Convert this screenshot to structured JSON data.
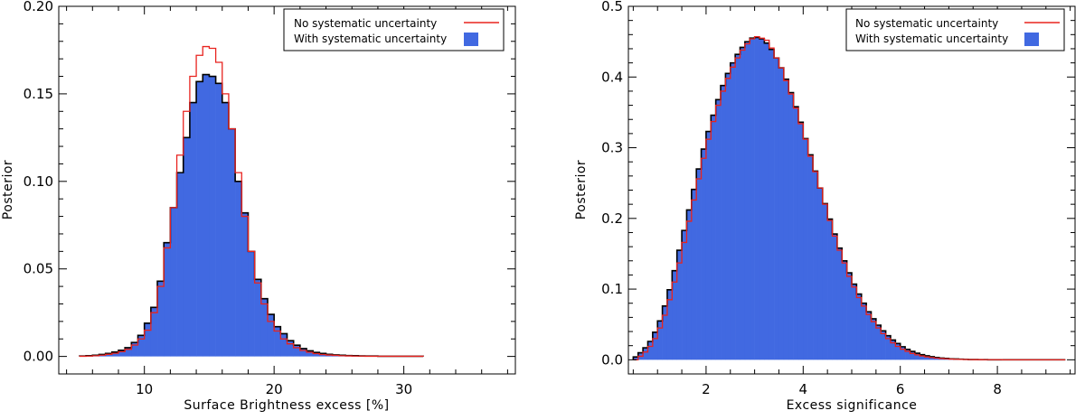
{
  "chart_data": [
    {
      "type": "histogram",
      "xlabel": "Surface Brightness excess [%]",
      "ylabel": "Posterior",
      "xlim": [
        3.4,
        38.6
      ],
      "ylim": [
        -0.01,
        0.2
      ],
      "xticks": [
        10,
        20,
        30
      ],
      "yticks": [
        0.0,
        0.05,
        0.1,
        0.15,
        0.2
      ],
      "ytick_labels": [
        "0.00",
        "0.05",
        "0.10",
        "0.15",
        "0.20"
      ],
      "bin_width": 0.5,
      "bin_start": 5.0,
      "legend_position": "top-right",
      "series": [
        {
          "name": "No systematic uncertainty",
          "style": "red outline histogram",
          "color": "#e8231f",
          "values": [
            0.0001,
            0.0002,
            0.0004,
            0.0007,
            0.0012,
            0.0018,
            0.0027,
            0.0041,
            0.0065,
            0.01,
            0.015,
            0.025,
            0.04,
            0.062,
            0.085,
            0.115,
            0.14,
            0.16,
            0.172,
            0.177,
            0.176,
            0.168,
            0.15,
            0.13,
            0.105,
            0.08,
            0.06,
            0.042,
            0.03,
            0.02,
            0.0145,
            0.01,
            0.0072,
            0.005,
            0.0034,
            0.0024,
            0.0016,
            0.0011,
            0.0008,
            0.0006,
            0.0004,
            0.0003,
            0.0002,
            0.0002,
            0.0001,
            0.0001,
            0.0001,
            0.0001,
            0.0001,
            0.0001,
            0.0001,
            0.0001,
            0.0001
          ]
        },
        {
          "name": "With systematic uncertainty",
          "style": "filled histogram",
          "color": "#4169e1",
          "values": [
            0.0002,
            0.0004,
            0.0007,
            0.0011,
            0.0017,
            0.0025,
            0.0035,
            0.005,
            0.008,
            0.012,
            0.019,
            0.028,
            0.043,
            0.065,
            0.085,
            0.105,
            0.125,
            0.145,
            0.157,
            0.161,
            0.16,
            0.156,
            0.145,
            0.13,
            0.1,
            0.082,
            0.06,
            0.044,
            0.033,
            0.024,
            0.017,
            0.013,
            0.009,
            0.0064,
            0.0045,
            0.0032,
            0.0023,
            0.0017,
            0.0012,
            0.0009,
            0.0007,
            0.0005,
            0.0004,
            0.0003,
            0.0002,
            0.0002,
            0.0001,
            0.0001,
            0.0001,
            0.0001,
            0.0001,
            0.0001,
            0.0001
          ]
        }
      ]
    },
    {
      "type": "histogram",
      "xlabel": "Excess significance",
      "ylabel": "Posterior",
      "xlim": [
        0.4,
        9.6
      ],
      "ylim": [
        -0.02,
        0.5
      ],
      "xticks": [
        2,
        4,
        6,
        8
      ],
      "yticks": [
        0.0,
        0.1,
        0.2,
        0.3,
        0.4,
        0.5
      ],
      "ytick_labels": [
        "0.0",
        "0.1",
        "0.2",
        "0.3",
        "0.4",
        "0.5"
      ],
      "bin_width": 0.1,
      "bin_start": 0.5,
      "legend_position": "top-right",
      "series": [
        {
          "name": "No systematic uncertainty",
          "style": "red outline histogram",
          "color": "#e8231f",
          "values": [
            0.0,
            0.005,
            0.011,
            0.019,
            0.03,
            0.045,
            0.063,
            0.085,
            0.11,
            0.137,
            0.166,
            0.196,
            0.226,
            0.256,
            0.285,
            0.312,
            0.337,
            0.36,
            0.38,
            0.398,
            0.414,
            0.427,
            0.438,
            0.447,
            0.454,
            0.457,
            0.455,
            0.452,
            0.441,
            0.427,
            0.413,
            0.395,
            0.376,
            0.356,
            0.334,
            0.312,
            0.288,
            0.266,
            0.243,
            0.22,
            0.197,
            0.175,
            0.155,
            0.137,
            0.118,
            0.103,
            0.088,
            0.076,
            0.064,
            0.054,
            0.045,
            0.037,
            0.03,
            0.024,
            0.019,
            0.015,
            0.012,
            0.009,
            0.007,
            0.0055,
            0.0042,
            0.0032,
            0.0024,
            0.0018,
            0.0014,
            0.001,
            0.0008,
            0.0006,
            0.0004,
            0.0003,
            0.0002,
            0.0002,
            0.0001,
            0.0001,
            0.0001,
            0.0001,
            0.0,
            0.0,
            0.0,
            0.0,
            0.0,
            0.0,
            0.0,
            0.0,
            0.0,
            0.0,
            0.0,
            0.0,
            0.0
          ]
        },
        {
          "name": "With systematic uncertainty",
          "style": "filled histogram",
          "color": "#4169e1",
          "values": [
            0.004,
            0.01,
            0.017,
            0.026,
            0.039,
            0.055,
            0.076,
            0.099,
            0.126,
            0.155,
            0.183,
            0.212,
            0.241,
            0.27,
            0.298,
            0.323,
            0.346,
            0.368,
            0.388,
            0.405,
            0.42,
            0.432,
            0.442,
            0.45,
            0.455,
            0.456,
            0.454,
            0.448,
            0.439,
            0.427,
            0.413,
            0.397,
            0.378,
            0.358,
            0.336,
            0.313,
            0.29,
            0.267,
            0.243,
            0.221,
            0.199,
            0.178,
            0.158,
            0.14,
            0.123,
            0.107,
            0.093,
            0.08,
            0.068,
            0.058,
            0.049,
            0.041,
            0.034,
            0.028,
            0.023,
            0.0185,
            0.0148,
            0.0118,
            0.0093,
            0.0072,
            0.0056,
            0.0043,
            0.0033,
            0.0025,
            0.0019,
            0.0014,
            0.0011,
            0.0008,
            0.0006,
            0.0004,
            0.0003,
            0.0002,
            0.0002,
            0.0001,
            0.0001,
            0.0001,
            0.0001,
            0.0001,
            0.0,
            0.0,
            0.0,
            0.0,
            0.0,
            0.0,
            0.0,
            0.0,
            0.0,
            0.0,
            0.0
          ]
        }
      ]
    }
  ]
}
